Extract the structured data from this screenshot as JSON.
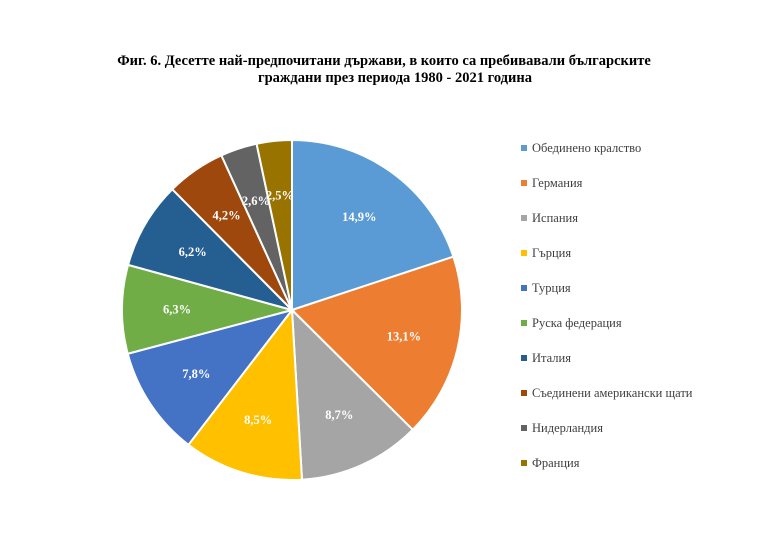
{
  "title": {
    "line1": "Фиг. 6. Десетте най-предпочитани държави, в които са пребивавали българските",
    "line2": "граждани през периода 1980 - 2021 година"
  },
  "chart_data": {
    "type": "pie",
    "title": "Фиг. 6. Десетте най-предпочитани държави, в които са пребивавали българските граждани през периода 1980 - 2021 година",
    "legend_position": "right",
    "categories": [
      "Обединено кралство",
      "Германия",
      "Испания",
      "Гърция",
      "Турция",
      "Руска федерация",
      "Италия",
      "Съединени американски щати",
      "Нидерландия",
      "Франция"
    ],
    "values": [
      14.9,
      13.1,
      8.7,
      8.5,
      7.8,
      6.3,
      6.2,
      4.2,
      2.6,
      2.5
    ],
    "data_labels": [
      "14,9%",
      "13,1%",
      "8,7%",
      "8,5%",
      "7,8%",
      "6,3%",
      "6,2%",
      "4,2%",
      "2,6%",
      "2,5%"
    ],
    "colors": [
      "#5B9BD5",
      "#ED7D31",
      "#A5A5A5",
      "#FFC000",
      "#4472C4",
      "#70AD47",
      "#255E91",
      "#9E480E",
      "#636363",
      "#997300"
    ]
  }
}
